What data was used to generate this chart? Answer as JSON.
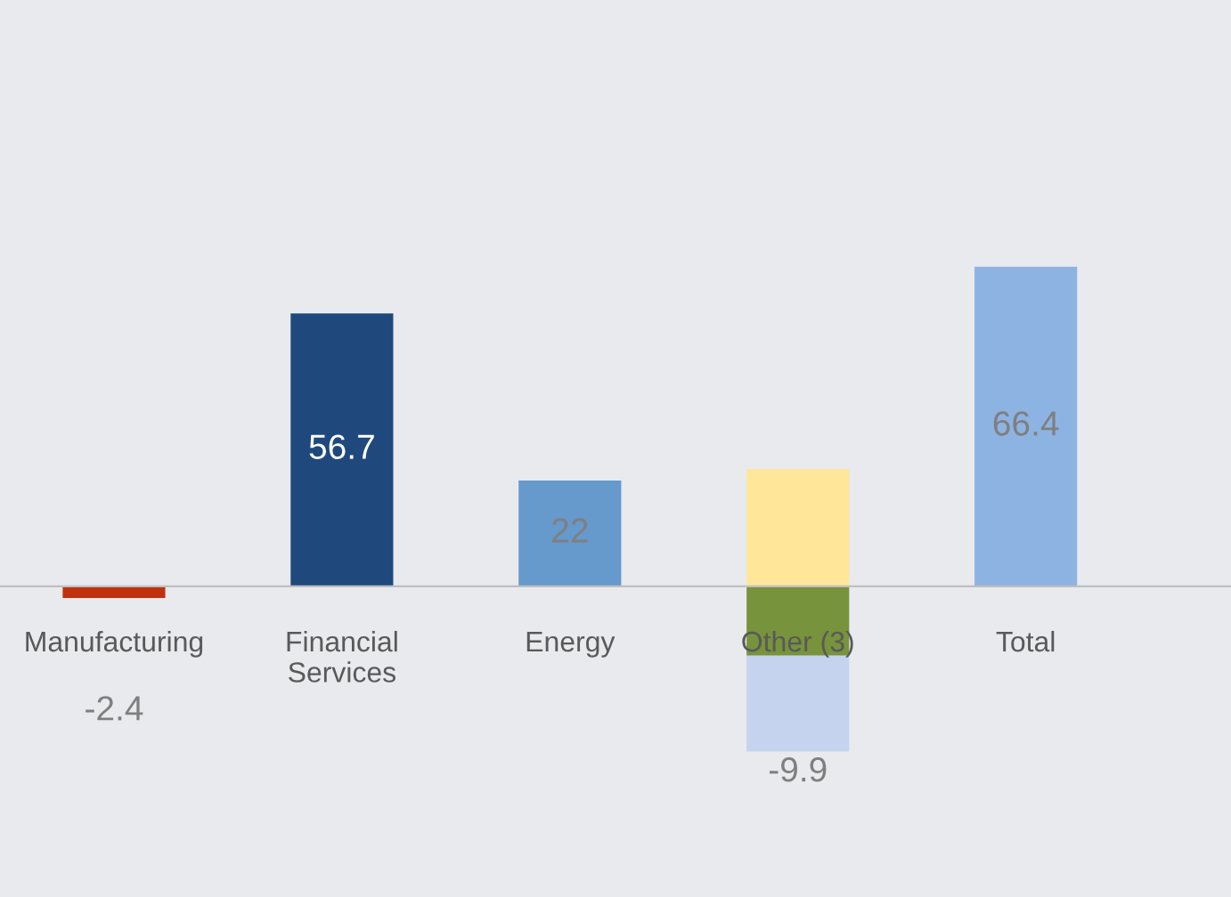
{
  "chart_data": {
    "type": "bar",
    "stacked": true,
    "tick_labels": "x",
    "grid": false,
    "categories": [
      "Manufacturing",
      "Financial Services",
      "Energy",
      "Other (3)",
      "Total"
    ],
    "series": [
      {
        "colors": [
          "#c0310f",
          "#1f497d",
          "#6699cc",
          null,
          "#8db3e2"
        ],
        "values": [
          -2.4,
          56.7,
          22,
          null,
          66.4
        ],
        "value_labels": [
          "-2.4",
          "56.7",
          "22",
          null,
          "66.4"
        ]
      },
      {
        "color": "#ffe699",
        "values": [
          null,
          null,
          null,
          24.4,
          null
        ]
      },
      {
        "color": "#77933c",
        "values": [
          null,
          null,
          null,
          -14.4,
          null
        ]
      },
      {
        "color": "#c5d3ee",
        "values": [
          null,
          null,
          null,
          -19.9,
          null
        ]
      }
    ],
    "totals": [
      null,
      null,
      null,
      "-9.9",
      null
    ]
  }
}
